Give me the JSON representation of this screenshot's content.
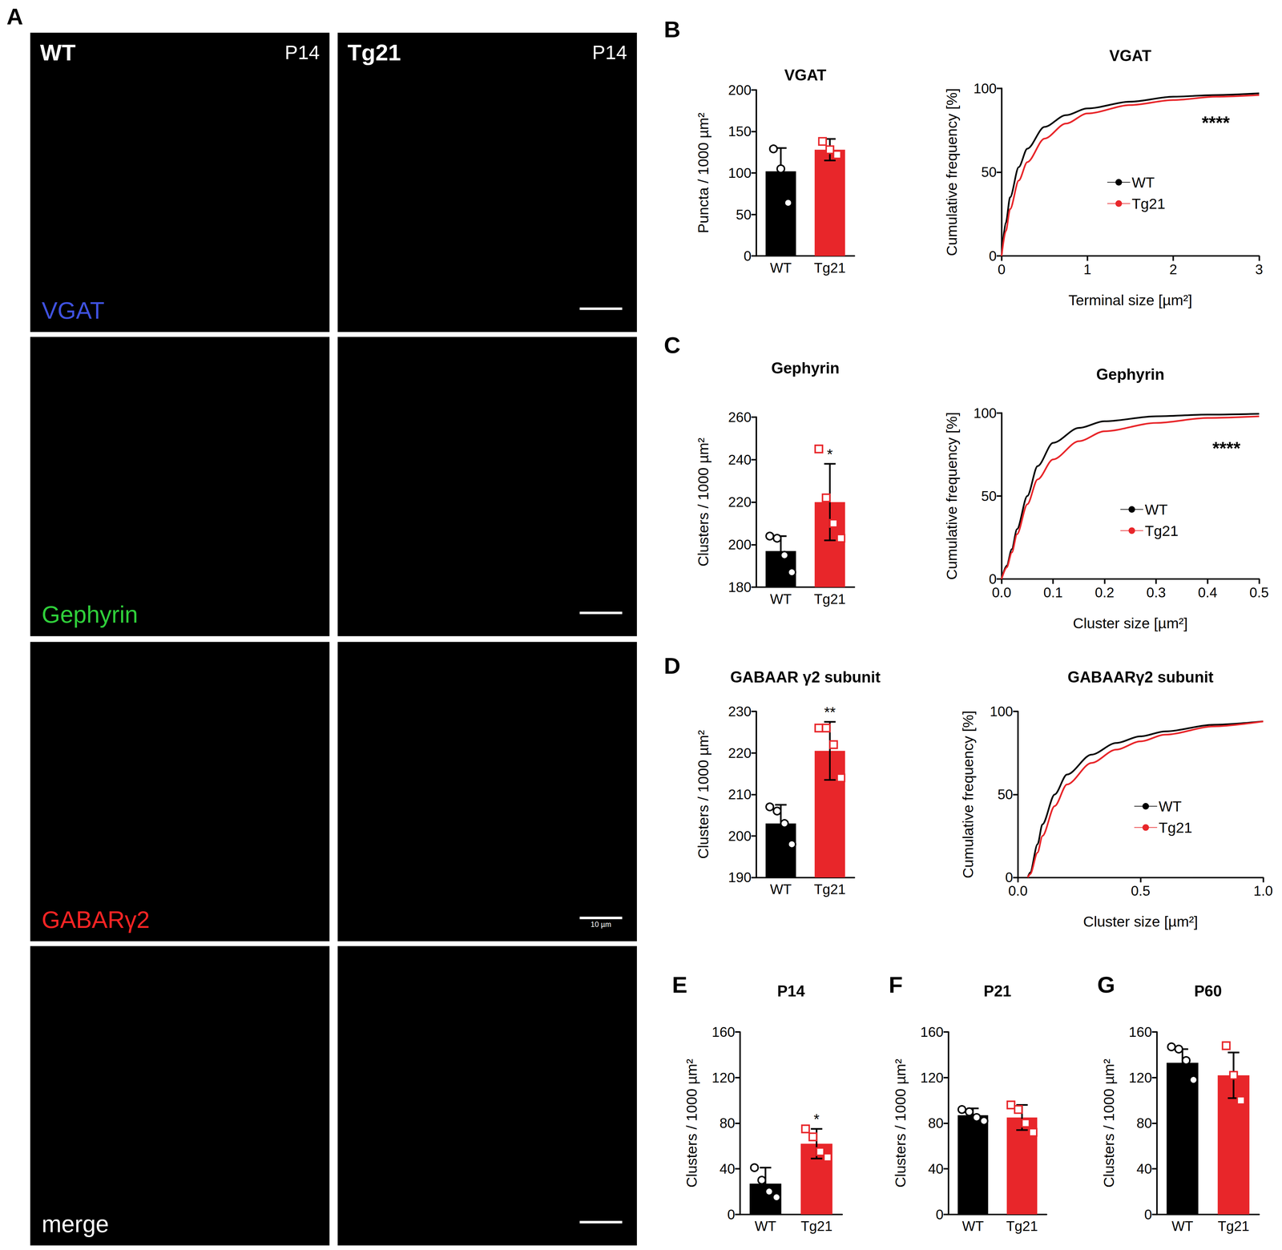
{
  "images": {
    "panel": "A",
    "columns": [
      {
        "genotype": "WT",
        "age": "P14"
      },
      {
        "genotype": "Tg21",
        "age": "P14"
      }
    ],
    "rows": [
      {
        "label": "VGAT",
        "color": "#3f52e0"
      },
      {
        "label": "Gephyrin",
        "color": "#2fcf3a"
      },
      {
        "label": "GABARγ2",
        "color": "#ff2424"
      },
      {
        "label": "merge",
        "color": "#ffffff"
      }
    ],
    "scale_bar": "10 µm"
  },
  "chart_data": [
    {
      "panel": "B",
      "type": "bar",
      "title": "VGAT",
      "y_label": "Puncta / 1000 µm²",
      "categories": [
        "WT",
        "Tg21"
      ],
      "values": [
        102,
        128
      ],
      "errors": [
        28,
        13
      ],
      "points": [
        [
          129,
          105,
          64
        ],
        [
          138,
          128,
          122
        ]
      ],
      "colors": [
        "#000000",
        "#e8262a"
      ],
      "ylim": [
        0,
        200
      ],
      "yticks": [
        0,
        50,
        100,
        150,
        200
      ],
      "grid": false
    },
    {
      "type": "line",
      "title": "VGAT",
      "x_label": "Terminal size [µm²]",
      "y_label": "Cumulative frequency [%]",
      "series": [
        {
          "name": "WT",
          "color": "#000000",
          "x": [
            0,
            0.05,
            0.1,
            0.2,
            0.3,
            0.5,
            0.75,
            1,
            1.5,
            2,
            2.5,
            3
          ],
          "values": [
            0,
            20,
            35,
            53,
            64,
            77,
            84,
            88,
            92,
            95,
            96,
            97
          ]
        },
        {
          "name": "Tg21",
          "color": "#e8262a",
          "x": [
            0,
            0.05,
            0.1,
            0.2,
            0.3,
            0.5,
            0.75,
            1,
            1.5,
            2,
            2.5,
            3
          ],
          "values": [
            0,
            15,
            28,
            45,
            56,
            70,
            79,
            85,
            90,
            93,
            95,
            96
          ]
        }
      ],
      "xlim": [
        0,
        3
      ],
      "xticks": [
        0,
        1,
        2,
        3
      ],
      "ylim": [
        0,
        100
      ],
      "yticks": [
        0,
        50,
        100
      ],
      "legend": "right",
      "annotations": [
        {
          "text": "****"
        }
      ],
      "grid": false
    },
    {
      "panel": "C",
      "type": "bar",
      "title": "Gephyrin",
      "y_label": "Clusters / 1000 µm²",
      "categories": [
        "WT",
        "Tg21"
      ],
      "values": [
        197,
        220
      ],
      "errors": [
        7,
        18
      ],
      "points": [
        [
          204,
          203,
          195,
          187
        ],
        [
          245,
          222,
          210,
          203
        ]
      ],
      "colors": [
        "#000000",
        "#e8262a"
      ],
      "ylim": [
        180,
        260
      ],
      "yticks": [
        180,
        200,
        220,
        240,
        260
      ],
      "annotations": [
        {
          "category": "Tg21",
          "text": "*"
        }
      ],
      "grid": false
    },
    {
      "type": "line",
      "title": "Gephyrin",
      "x_label": "Cluster size [µm²]",
      "y_label": "Cumulative frequency [%]",
      "series": [
        {
          "name": "WT",
          "color": "#000000",
          "x": [
            0,
            0.01,
            0.02,
            0.03,
            0.05,
            0.07,
            0.1,
            0.15,
            0.2,
            0.3,
            0.4,
            0.5
          ],
          "values": [
            0,
            8,
            18,
            30,
            50,
            68,
            82,
            91,
            95,
            98,
            99,
            99.5
          ]
        },
        {
          "name": "Tg21",
          "color": "#e8262a",
          "x": [
            0,
            0.01,
            0.02,
            0.03,
            0.05,
            0.07,
            0.1,
            0.15,
            0.2,
            0.3,
            0.4,
            0.5
          ],
          "values": [
            0,
            7,
            16,
            27,
            45,
            60,
            72,
            83,
            89,
            94,
            97,
            98
          ]
        }
      ],
      "xlim": [
        0,
        0.5
      ],
      "xticks": [
        {
          "value": 0,
          "label": "0.0"
        },
        0.1,
        0.2,
        0.3,
        0.4,
        0.5
      ],
      "ylim": [
        0,
        100
      ],
      "yticks": [
        0,
        50,
        100
      ],
      "legend": "right",
      "annotations": [
        {
          "text": "****"
        }
      ],
      "grid": false
    },
    {
      "panel": "D",
      "type": "bar",
      "title": "GABAAR γ2 subunit",
      "y_label": "Clusters / 1000 µm²",
      "categories": [
        "WT",
        "Tg21"
      ],
      "values": [
        203,
        220.5
      ],
      "errors": [
        4.5,
        7
      ],
      "points": [
        [
          207,
          206,
          203,
          198
        ],
        [
          226,
          226,
          222,
          214
        ]
      ],
      "colors": [
        "#000000",
        "#e8262a"
      ],
      "ylim": [
        190,
        230
      ],
      "yticks": [
        190,
        200,
        210,
        220,
        230
      ],
      "annotations": [
        {
          "category": "Tg21",
          "text": "**"
        }
      ],
      "grid": false
    },
    {
      "type": "line",
      "title": "GABAARγ2 subunit",
      "x_label": "Cluster size [µm²]",
      "y_label": "Cumulative frequency [%]",
      "series": [
        {
          "name": "WT",
          "color": "#000000",
          "x": [
            0.04,
            0.05,
            0.08,
            0.1,
            0.15,
            0.2,
            0.3,
            0.4,
            0.5,
            0.6,
            0.8,
            1.0
          ],
          "values": [
            0,
            3,
            20,
            32,
            50,
            62,
            74,
            81,
            85,
            88,
            92,
            94
          ]
        },
        {
          "name": "Tg21",
          "color": "#e8262a",
          "x": [
            0.04,
            0.05,
            0.08,
            0.1,
            0.15,
            0.2,
            0.3,
            0.4,
            0.5,
            0.6,
            0.8,
            1.0
          ],
          "values": [
            0,
            2,
            15,
            25,
            43,
            56,
            69,
            77,
            82,
            86,
            91,
            94
          ]
        }
      ],
      "xlim": [
        0,
        1
      ],
      "xticks": [
        {
          "value": 0,
          "label": "0.0"
        },
        0.5,
        {
          "value": 1,
          "label": "1.0"
        }
      ],
      "ylim": [
        0,
        100
      ],
      "yticks": [
        0,
        50,
        100
      ],
      "legend": "right",
      "grid": false
    },
    {
      "panel": "E",
      "type": "bar",
      "title": "P14",
      "y_label": "Clusters / 1000 µm²",
      "categories": [
        "WT",
        "Tg21"
      ],
      "values": [
        27,
        62
      ],
      "errors": [
        14,
        13
      ],
      "points": [
        [
          41,
          30,
          20,
          15
        ],
        [
          75,
          68,
          55,
          50
        ]
      ],
      "colors": [
        "#000000",
        "#e8262a"
      ],
      "ylim": [
        0,
        160
      ],
      "yticks": [
        0,
        40,
        80,
        120,
        160
      ],
      "annotations": [
        {
          "category": "Tg21",
          "text": "*"
        }
      ],
      "grid": false
    },
    {
      "panel": "F",
      "type": "bar",
      "title": "P21",
      "y_label": "Clusters / 1000 µm²",
      "categories": [
        "WT",
        "Tg21"
      ],
      "values": [
        87,
        85
      ],
      "errors": [
        6,
        11
      ],
      "points": [
        [
          92,
          90,
          85,
          82
        ],
        [
          96,
          92,
          80,
          72
        ]
      ],
      "colors": [
        "#000000",
        "#e8262a"
      ],
      "ylim": [
        0,
        160
      ],
      "yticks": [
        0,
        40,
        80,
        120,
        160
      ],
      "grid": false
    },
    {
      "panel": "G",
      "type": "bar",
      "title": "P60",
      "y_label": "Clusters / 1000 µm²",
      "categories": [
        "WT",
        "Tg21"
      ],
      "values": [
        133,
        122
      ],
      "errors": [
        12,
        20
      ],
      "points": [
        [
          147,
          145,
          135,
          118
        ],
        [
          148,
          122,
          100
        ]
      ],
      "colors": [
        "#000000",
        "#e8262a"
      ],
      "ylim": [
        0,
        160
      ],
      "yticks": [
        0,
        40,
        80,
        120,
        160
      ],
      "grid": false
    }
  ]
}
